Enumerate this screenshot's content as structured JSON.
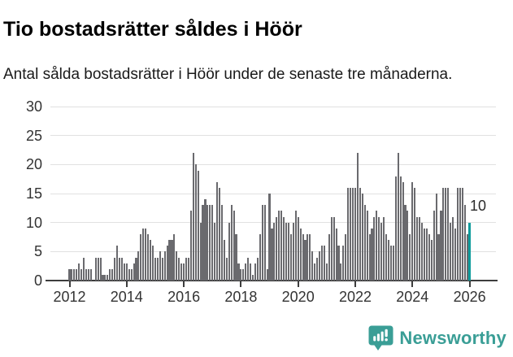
{
  "header": {
    "title": "Tio bostadsrätter såldes i Höör",
    "subtitle": "Antal sålda bostadsrätter i Höör under de senaste tre månaderna."
  },
  "chart_data": {
    "type": "bar",
    "title": "Tio bostadsrätter såldes i Höör",
    "xlabel": "",
    "ylabel": "",
    "ylim": [
      0,
      30
    ],
    "yticks": [
      0,
      5,
      10,
      15,
      20,
      25,
      30
    ],
    "xticks": [
      2012,
      2014,
      2016,
      2018,
      2020,
      2022,
      2024,
      2026
    ],
    "grid": true,
    "legend_position": "none",
    "frequency": "monthly",
    "start_month": "2012-01",
    "unit": "antal sålda bostadsrätter (rullande 3 månader)",
    "bar_color": "#6a6a6e",
    "highlight_color": "#0d9b9b",
    "values": [
      2,
      2,
      2,
      2,
      3,
      2,
      4,
      2,
      2,
      2,
      0,
      4,
      4,
      4,
      1,
      1,
      1,
      2,
      2,
      4,
      6,
      4,
      4,
      3,
      3,
      2,
      2,
      3,
      4,
      5,
      8,
      9,
      9,
      8,
      7,
      6,
      4,
      4,
      5,
      4,
      5,
      6,
      7,
      7,
      8,
      5,
      4,
      3,
      3,
      4,
      4,
      12,
      22,
      20,
      19,
      10,
      13,
      14,
      13,
      13,
      13,
      10,
      17,
      16,
      13,
      7,
      4,
      10,
      13,
      12,
      8,
      3,
      2,
      2,
      3,
      4,
      3,
      1,
      3,
      4,
      8,
      13,
      13,
      2,
      15,
      9,
      10,
      11,
      12,
      12,
      11,
      10,
      10,
      8,
      10,
      12,
      11,
      9,
      8,
      7,
      8,
      8,
      5,
      3,
      4,
      5,
      6,
      6,
      3,
      8,
      11,
      11,
      9,
      6,
      3,
      6,
      8,
      16,
      16,
      16,
      16,
      22,
      16,
      15,
      13,
      12,
      8,
      9,
      11,
      12,
      11,
      10,
      11,
      8,
      7,
      6,
      6,
      18,
      22,
      18,
      17,
      13,
      12,
      8,
      17,
      16,
      11,
      11,
      10,
      9,
      9,
      8,
      7,
      12,
      15,
      8,
      12,
      16,
      16,
      16,
      10,
      11,
      9,
      16,
      16,
      16,
      13,
      8,
      10
    ],
    "highlight": {
      "index": 168,
      "value": 10,
      "label": "10"
    }
  },
  "footer": {
    "brand": "Newsworthy",
    "logo_icon": "newsworthy-speech-bubble-bar-chart-icon",
    "brand_color": "#3a9e96"
  },
  "colors": {
    "bar_gray": "#6a6a6e",
    "bar_teal": "#0d9b9b",
    "gridline": "#e1e1e1",
    "axis": "#3d3d3d",
    "tick_label": "#333333",
    "title": "#000000",
    "subtitle": "#1a1a1a"
  }
}
